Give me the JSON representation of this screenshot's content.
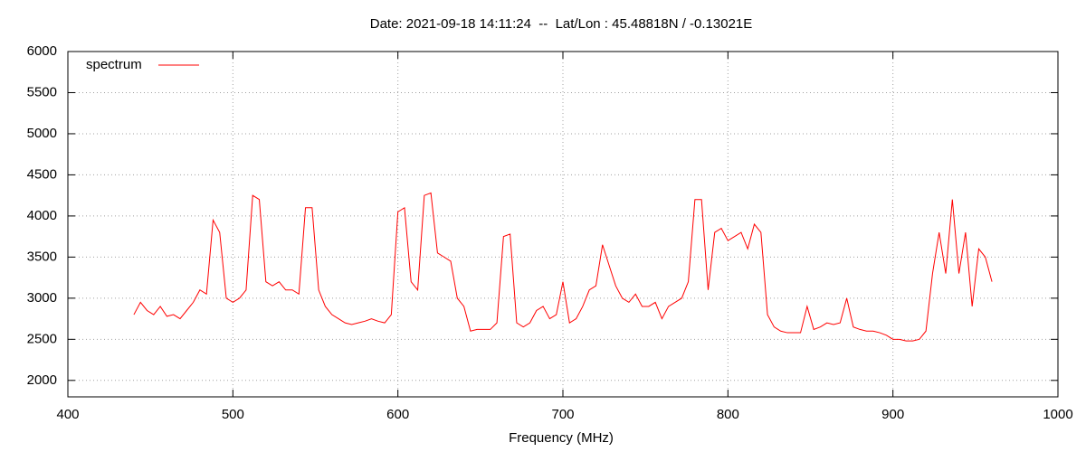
{
  "chart_data": {
    "type": "line",
    "title": "Date: 2021-09-18 14:11:24  --  Lat/Lon : 45.48818N / -0.13021E",
    "xlabel": "Frequency (MHz)",
    "xlim": [
      400,
      1000
    ],
    "xticks": [
      400,
      500,
      600,
      700,
      800,
      900,
      1000
    ],
    "ylim": [
      1800,
      6000
    ],
    "yticks": [
      2000,
      2500,
      3000,
      3500,
      4000,
      4500,
      5000,
      5500,
      6000
    ],
    "grid": true,
    "legend": "top-left",
    "x": [
      440,
      444,
      448,
      452,
      456,
      460,
      464,
      468,
      472,
      476,
      480,
      484,
      488,
      492,
      496,
      500,
      504,
      508,
      512,
      516,
      520,
      524,
      528,
      532,
      536,
      540,
      544,
      548,
      552,
      556,
      560,
      564,
      568,
      572,
      576,
      580,
      584,
      588,
      592,
      596,
      600,
      604,
      608,
      612,
      616,
      620,
      624,
      628,
      632,
      636,
      640,
      644,
      648,
      652,
      656,
      660,
      664,
      668,
      672,
      676,
      680,
      684,
      688,
      692,
      696,
      700,
      704,
      708,
      712,
      716,
      720,
      724,
      728,
      732,
      736,
      740,
      744,
      748,
      752,
      756,
      760,
      764,
      768,
      772,
      776,
      780,
      784,
      788,
      792,
      796,
      800,
      804,
      808,
      812,
      816,
      820,
      824,
      828,
      832,
      836,
      840,
      844,
      848,
      852,
      856,
      860,
      864,
      868,
      872,
      876,
      880,
      884,
      888,
      892,
      896,
      900,
      904,
      908,
      912,
      916,
      920,
      924,
      928,
      932,
      936,
      940,
      944,
      948,
      952,
      956,
      960
    ],
    "series": [
      {
        "name": "spectrum",
        "color": "#ff0000",
        "values": [
          2800,
          2950,
          2850,
          2800,
          2900,
          2780,
          2800,
          2750,
          2850,
          2950,
          3100,
          3050,
          3950,
          3800,
          3000,
          2950,
          3000,
          3100,
          4250,
          4200,
          3200,
          3150,
          3200,
          3100,
          3100,
          3050,
          4100,
          4100,
          3100,
          2900,
          2800,
          2750,
          2700,
          2680,
          2700,
          2720,
          2750,
          2720,
          2700,
          2800,
          4050,
          4100,
          3200,
          3100,
          4250,
          4280,
          3550,
          3500,
          3450,
          3000,
          2900,
          2600,
          2620,
          2620,
          2620,
          2700,
          3750,
          3780,
          2700,
          2650,
          2700,
          2850,
          2900,
          2750,
          2800,
          3200,
          2700,
          2750,
          2900,
          3100,
          3150,
          3650,
          3400,
          3150,
          3000,
          2950,
          3050,
          2900,
          2900,
          2950,
          2750,
          2900,
          2950,
          3000,
          3200,
          4200,
          4200,
          3100,
          3800,
          3850,
          3700,
          3750,
          3800,
          3600,
          3900,
          3800,
          2800,
          2650,
          2600,
          2580,
          2580,
          2580,
          2900,
          2620,
          2650,
          2700,
          2680,
          2700,
          3000,
          2650,
          2620,
          2600,
          2600,
          2580,
          2550,
          2500,
          2500,
          2480,
          2480,
          2500,
          2600,
          3300,
          3800,
          3300,
          4200,
          3300,
          3800,
          2900,
          3600,
          3500,
          3200
        ]
      }
    ]
  }
}
